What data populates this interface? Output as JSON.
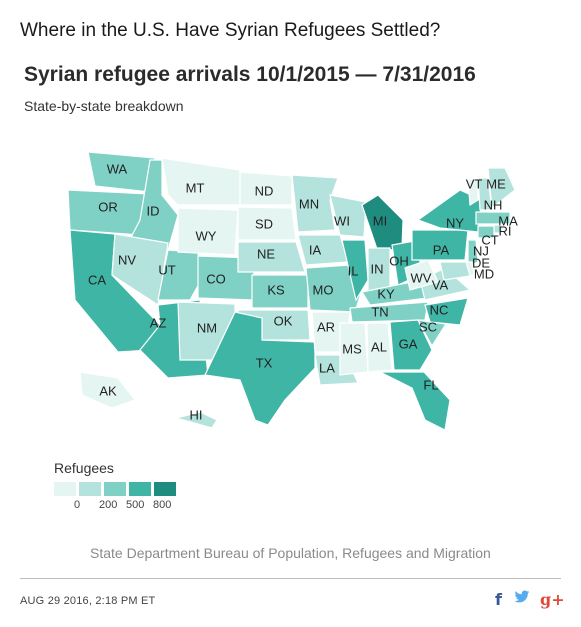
{
  "headline": "Where in the U.S. Have Syrian Refugees Settled?",
  "map": {
    "title": "Syrian refugee arrivals 10/1/2015 — 7/31/2016",
    "subtitle": "State-by-state breakdown",
    "colors": {
      "level0": "#e5f6f2",
      "level1": "#b3e3dc",
      "level2": "#7fd1c6",
      "level3": "#3fb5a6",
      "level4": "#1f8c80"
    },
    "states": [
      {
        "abbr": "WA",
        "level": 2
      },
      {
        "abbr": "OR",
        "level": 2
      },
      {
        "abbr": "CA",
        "level": 3
      },
      {
        "abbr": "ID",
        "level": 2
      },
      {
        "abbr": "NV",
        "level": 1
      },
      {
        "abbr": "UT",
        "level": 2
      },
      {
        "abbr": "AZ",
        "level": 3
      },
      {
        "abbr": "MT",
        "level": 0
      },
      {
        "abbr": "WY",
        "level": 0
      },
      {
        "abbr": "CO",
        "level": 2
      },
      {
        "abbr": "NM",
        "level": 1
      },
      {
        "abbr": "ND",
        "level": 0
      },
      {
        "abbr": "SD",
        "level": 0
      },
      {
        "abbr": "NE",
        "level": 1
      },
      {
        "abbr": "KS",
        "level": 2
      },
      {
        "abbr": "OK",
        "level": 1
      },
      {
        "abbr": "TX",
        "level": 3
      },
      {
        "abbr": "MN",
        "level": 1
      },
      {
        "abbr": "IA",
        "level": 1
      },
      {
        "abbr": "MO",
        "level": 2
      },
      {
        "abbr": "AR",
        "level": 0
      },
      {
        "abbr": "LA",
        "level": 1
      },
      {
        "abbr": "WI",
        "level": 1
      },
      {
        "abbr": "IL",
        "level": 3
      },
      {
        "abbr": "MI",
        "level": 4
      },
      {
        "abbr": "IN",
        "level": 1
      },
      {
        "abbr": "OH",
        "level": 3
      },
      {
        "abbr": "KY",
        "level": 2
      },
      {
        "abbr": "TN",
        "level": 2
      },
      {
        "abbr": "MS",
        "level": 0
      },
      {
        "abbr": "AL",
        "level": 0
      },
      {
        "abbr": "GA",
        "level": 3
      },
      {
        "abbr": "FL",
        "level": 3
      },
      {
        "abbr": "SC",
        "level": 2
      },
      {
        "abbr": "NC",
        "level": 3
      },
      {
        "abbr": "VA",
        "level": 1
      },
      {
        "abbr": "WV",
        "level": 0
      },
      {
        "abbr": "PA",
        "level": 3
      },
      {
        "abbr": "NY",
        "level": 3
      },
      {
        "abbr": "VT",
        "level": 0
      },
      {
        "abbr": "NH",
        "level": 1
      },
      {
        "abbr": "ME",
        "level": 1
      },
      {
        "abbr": "MA",
        "level": 2
      },
      {
        "abbr": "RI",
        "level": 1
      },
      {
        "abbr": "CT",
        "level": 2
      },
      {
        "abbr": "NJ",
        "level": 2
      },
      {
        "abbr": "DE",
        "level": 0
      },
      {
        "abbr": "MD",
        "level": 1
      },
      {
        "abbr": "AK",
        "level": 0
      },
      {
        "abbr": "HI",
        "level": 1
      }
    ],
    "legend": {
      "title": "Refugees",
      "ticks": [
        "0",
        "200",
        "500",
        "800"
      ]
    },
    "source": "State Department Bureau of Population, Refugees and Migration"
  },
  "footer": {
    "timestamp": "AUG 29 2016, 2:18 PM ET",
    "share": {
      "facebook": "f",
      "twitter": "🐦",
      "googleplus": "g+"
    },
    "icons": [
      "facebook-icon",
      "twitter-icon",
      "google-plus-icon"
    ]
  }
}
